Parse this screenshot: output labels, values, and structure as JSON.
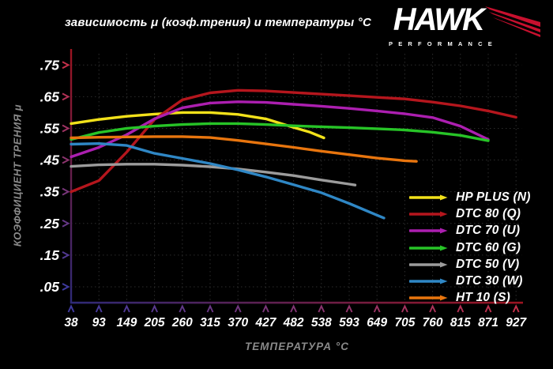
{
  "title": "зависимость μ (коэф.трения) и температуры °C",
  "logo": {
    "brand": "HAWK",
    "sub": "PERFORMANCE",
    "wing_color": "#c8102e"
  },
  "axis_colors": {
    "arrow_hot": "#c5304a",
    "arrow_cold": "#3f3a9e",
    "line_hot": "#9c1420",
    "line_cold": "#2e2a77",
    "grid": "#2d2d2d",
    "tick_label": "#ffffff",
    "axis_title": "#8a8a8a"
  },
  "chart_data": {
    "type": "line",
    "title": "зависимость μ (коэф.трения) и температуры °C",
    "xlabel": "ТЕМПЕРАТУРА °C",
    "ylabel": "КОЭФФИЦИЕНТ ТРЕНИЯ μ",
    "grid": "dotted",
    "legend_position": "inside-right",
    "x_ticks": [
      38,
      93,
      149,
      205,
      260,
      315,
      370,
      427,
      482,
      538,
      593,
      649,
      705,
      760,
      815,
      871,
      927
    ],
    "y_tick_labels": [
      ".75",
      ".65",
      ".55",
      ".45",
      ".35",
      ".25",
      ".15",
      ".05"
    ],
    "y_tick_values": [
      0.75,
      0.65,
      0.55,
      0.45,
      0.35,
      0.25,
      0.15,
      0.05
    ],
    "ylim": [
      0,
      0.8
    ],
    "series": [
      {
        "name": "HP PLUS (N)",
        "color": "#f2e11a",
        "points": [
          [
            38,
            0.565
          ],
          [
            93,
            0.578
          ],
          [
            149,
            0.588
          ],
          [
            205,
            0.595
          ],
          [
            260,
            0.6
          ],
          [
            315,
            0.6
          ],
          [
            370,
            0.594
          ],
          [
            427,
            0.58
          ],
          [
            482,
            0.553
          ],
          [
            515,
            0.538
          ],
          [
            543,
            0.52
          ]
        ]
      },
      {
        "name": "DTC 80 (Q)",
        "color": "#b5161d",
        "points": [
          [
            38,
            0.35
          ],
          [
            93,
            0.385
          ],
          [
            149,
            0.475
          ],
          [
            205,
            0.578
          ],
          [
            260,
            0.64
          ],
          [
            315,
            0.662
          ],
          [
            370,
            0.67
          ],
          [
            427,
            0.668
          ],
          [
            482,
            0.663
          ],
          [
            538,
            0.658
          ],
          [
            593,
            0.653
          ],
          [
            649,
            0.648
          ],
          [
            705,
            0.643
          ],
          [
            760,
            0.633
          ],
          [
            815,
            0.621
          ],
          [
            871,
            0.605
          ],
          [
            927,
            0.585
          ]
        ]
      },
      {
        "name": "DTC 70 (U)",
        "color": "#ac1fb0",
        "points": [
          [
            38,
            0.46
          ],
          [
            93,
            0.49
          ],
          [
            149,
            0.53
          ],
          [
            205,
            0.58
          ],
          [
            260,
            0.615
          ],
          [
            315,
            0.63
          ],
          [
            370,
            0.634
          ],
          [
            427,
            0.632
          ],
          [
            482,
            0.626
          ],
          [
            538,
            0.62
          ],
          [
            593,
            0.613
          ],
          [
            649,
            0.605
          ],
          [
            705,
            0.596
          ],
          [
            760,
            0.584
          ],
          [
            815,
            0.557
          ],
          [
            871,
            0.515
          ]
        ]
      },
      {
        "name": "DTC 60 (G)",
        "color": "#27c427",
        "points": [
          [
            38,
            0.515
          ],
          [
            93,
            0.537
          ],
          [
            149,
            0.55
          ],
          [
            205,
            0.557
          ],
          [
            260,
            0.562
          ],
          [
            315,
            0.565
          ],
          [
            370,
            0.565
          ],
          [
            427,
            0.562
          ],
          [
            482,
            0.558
          ],
          [
            538,
            0.555
          ],
          [
            593,
            0.552
          ],
          [
            649,
            0.549
          ],
          [
            705,
            0.545
          ],
          [
            760,
            0.538
          ],
          [
            815,
            0.528
          ],
          [
            871,
            0.511
          ]
        ]
      },
      {
        "name": "DTC 50 (V)",
        "color": "#9c9c9c",
        "points": [
          [
            38,
            0.43
          ],
          [
            93,
            0.435
          ],
          [
            149,
            0.437
          ],
          [
            205,
            0.437
          ],
          [
            260,
            0.434
          ],
          [
            315,
            0.429
          ],
          [
            370,
            0.422
          ],
          [
            427,
            0.412
          ],
          [
            482,
            0.401
          ],
          [
            538,
            0.387
          ],
          [
            593,
            0.374
          ],
          [
            605,
            0.371
          ]
        ]
      },
      {
        "name": "DTC 30 (W)",
        "color": "#2f87c5",
        "points": [
          [
            38,
            0.5
          ],
          [
            93,
            0.502
          ],
          [
            149,
            0.496
          ],
          [
            205,
            0.471
          ],
          [
            260,
            0.455
          ],
          [
            315,
            0.439
          ],
          [
            370,
            0.419
          ],
          [
            427,
            0.397
          ],
          [
            482,
            0.372
          ],
          [
            538,
            0.347
          ],
          [
            593,
            0.313
          ],
          [
            649,
            0.276
          ],
          [
            663,
            0.267
          ]
        ]
      },
      {
        "name": "HT 10 (S)",
        "color": "#e8750e",
        "points": [
          [
            38,
            0.52
          ],
          [
            93,
            0.522
          ],
          [
            149,
            0.523
          ],
          [
            205,
            0.524
          ],
          [
            260,
            0.524
          ],
          [
            315,
            0.521
          ],
          [
            370,
            0.512
          ],
          [
            427,
            0.501
          ],
          [
            482,
            0.49
          ],
          [
            538,
            0.478
          ],
          [
            593,
            0.467
          ],
          [
            649,
            0.456
          ],
          [
            705,
            0.448
          ],
          [
            728,
            0.446
          ]
        ]
      }
    ]
  }
}
